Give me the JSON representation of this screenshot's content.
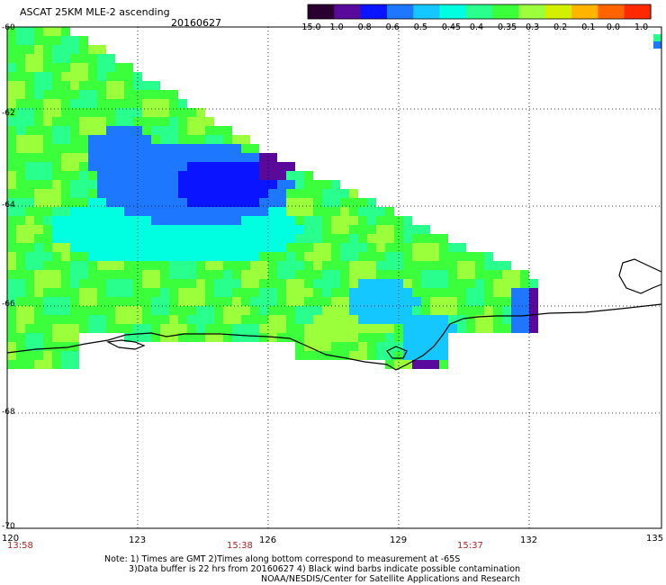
{
  "header": {
    "title": "ASCAT 25KM MLE-2 ascending",
    "date": "20160627"
  },
  "colorbar": {
    "labels": [
      "-15.0",
      "-1.0",
      "-0.8",
      "-0.6",
      "-0.5",
      "-0.45",
      "-0.4",
      "-0.35",
      "-0.3",
      "-0.2",
      "-0.1",
      "0.0",
      "1.0"
    ],
    "colors": [
      "#2a0030",
      "#5a0a9a",
      "#0a14ff",
      "#1e78ff",
      "#14c8ff",
      "#00ffe0",
      "#28ff8c",
      "#3cff3c",
      "#9cff3c",
      "#d2f000",
      "#ffb400",
      "#ff6400",
      "#ff2800"
    ]
  },
  "latitude_ticks": [
    "-60",
    "-62",
    "-64",
    "-66",
    "-68",
    "-70"
  ],
  "longitude_ticks": [
    "120",
    "123",
    "126",
    "129",
    "132",
    "135"
  ],
  "time_stamps": [
    "13:58",
    "15:38",
    "15:37"
  ],
  "notes": {
    "line1": "Note: 1) Times are GMT 2)Times along bottom correspond to measurement at -65S",
    "line2": "3)Data buffer is 22 hrs from 20160627 4) Black wind barbs indicate possible contamination",
    "line3": "NOAA/NESDIS/Center for Satellite Applications and Research"
  },
  "colors": {
    "plot_border": "#000000",
    "grid": "#000000",
    "coastline": "#000000",
    "time_text": "#b22222"
  }
}
